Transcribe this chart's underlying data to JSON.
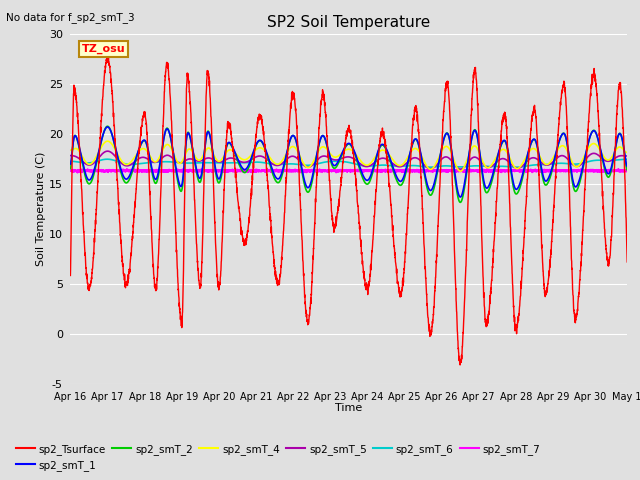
{
  "title": "SP2 Soil Temperature",
  "no_data_label": "No data for f_sp2_smT_3",
  "tz_label": "TZ_osu",
  "xlabel": "Time",
  "ylabel": "Soil Temperature (C)",
  "ylim": [
    -5,
    30
  ],
  "yticks": [
    -5,
    0,
    5,
    10,
    15,
    20,
    25,
    30
  ],
  "xlim": [
    0,
    15
  ],
  "xtick_labels": [
    "Apr 16",
    "Apr 17",
    "Apr 18",
    "Apr 19",
    "Apr 20",
    "Apr 21",
    "Apr 22",
    "Apr 23",
    "Apr 24",
    "Apr 25",
    "Apr 26",
    "Apr 27",
    "Apr 28",
    "Apr 29",
    "Apr 30",
    "May 1"
  ],
  "background_color": "#e0e0e0",
  "axes_face_color": "#e0e0e0",
  "grid_color": "#ffffff",
  "series_colors": {
    "sp2_Tsurface": "#ff0000",
    "sp2_smT_1": "#0000ff",
    "sp2_smT_2": "#00cc00",
    "sp2_smT_4": "#ffff00",
    "sp2_smT_5": "#aa00aa",
    "sp2_smT_6": "#00cccc",
    "sp2_smT_7": "#ff00ff"
  },
  "legend_entries": [
    {
      "label": "sp2_Tsurface",
      "color": "#ff0000"
    },
    {
      "label": "sp2_smT_1",
      "color": "#0000ff"
    },
    {
      "label": "sp2_smT_2",
      "color": "#00cc00"
    },
    {
      "label": "sp2_smT_4",
      "color": "#ffff00"
    },
    {
      "label": "sp2_smT_5",
      "color": "#aa00aa"
    },
    {
      "label": "sp2_smT_6",
      "color": "#00cccc"
    },
    {
      "label": "sp2_smT_7",
      "color": "#ff00ff"
    }
  ],
  "peak_days": [
    0.1,
    1.0,
    2.0,
    2.6,
    3.15,
    3.7,
    4.25,
    5.1,
    6.0,
    6.8,
    7.5,
    8.4,
    9.3,
    10.15,
    10.9,
    11.7,
    12.5,
    13.3,
    14.1,
    14.8
  ],
  "peak_heights": [
    24.5,
    27.5,
    22.0,
    27.0,
    25.8,
    26.2,
    21.0,
    21.8,
    24.0,
    24.0,
    20.5,
    20.2,
    22.5,
    25.0,
    26.5,
    22.0,
    22.5,
    25.0,
    26.0,
    25.0
  ],
  "trough_days": [
    0.5,
    1.5,
    2.3,
    3.0,
    3.5,
    4.0,
    4.7,
    5.6,
    6.4,
    7.1,
    8.0,
    8.9,
    9.7,
    10.5,
    11.2,
    12.0,
    12.8,
    13.6,
    14.5
  ],
  "trough_heights": [
    4.5,
    5.0,
    4.5,
    1.0,
    4.7,
    4.5,
    9.0,
    5.0,
    1.2,
    10.7,
    4.5,
    4.0,
    0.0,
    -3.0,
    1.0,
    0.5,
    4.0,
    1.5,
    7.0
  ]
}
